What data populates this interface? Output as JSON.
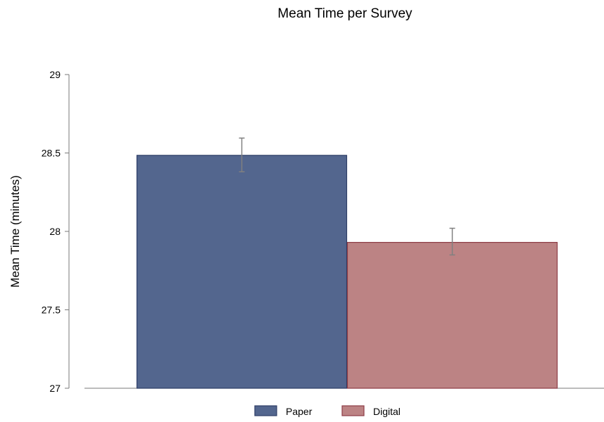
{
  "chart_data": {
    "type": "bar",
    "title": "Mean Time per Survey",
    "xlabel": "",
    "ylabel": "Mean Time (minutes)",
    "ylim": [
      27,
      29
    ],
    "yticks": [
      27,
      27.5,
      28,
      28.5,
      29
    ],
    "ytick_labels": [
      "27",
      "27.5",
      "28",
      "28.5",
      "29"
    ],
    "grid": false,
    "legend_position": "bottom",
    "series": [
      {
        "name": "Paper",
        "value": 28.485,
        "error_low": 28.38,
        "error_high": 28.595,
        "color": "#53668e",
        "edge": "#2d3d66"
      },
      {
        "name": "Digital",
        "value": 27.93,
        "error_low": 27.85,
        "error_high": 28.02,
        "color": "#bc8384",
        "edge": "#8e3c46"
      }
    ],
    "error_bar_color": "#808080"
  }
}
